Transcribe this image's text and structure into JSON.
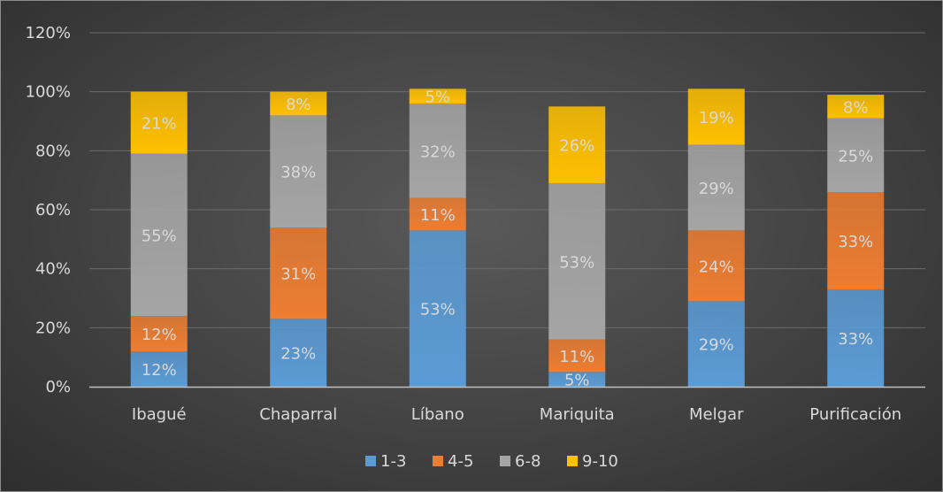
{
  "chart_data": {
    "type": "bar",
    "stacked": true,
    "categories": [
      "Ibagué",
      "Chaparral",
      "Líbano",
      "Mariquita",
      "Melgar",
      "Purificación"
    ],
    "series": [
      {
        "name": "1-3",
        "color": "#5b9bd5",
        "values": [
          12,
          23,
          53,
          5,
          29,
          33
        ]
      },
      {
        "name": "4-5",
        "color": "#ed7d31",
        "values": [
          12,
          31,
          11,
          11,
          24,
          33
        ]
      },
      {
        "name": "6-8",
        "color": "#a5a5a5",
        "values": [
          55,
          38,
          32,
          53,
          29,
          25
        ]
      },
      {
        "name": "9-10",
        "color": "#ffc000",
        "values": [
          21,
          8,
          5,
          26,
          19,
          8
        ]
      }
    ],
    "data_labels": [
      [
        "12%",
        "23%",
        "53%",
        "5%",
        "29%",
        "33%"
      ],
      [
        "12%",
        "31%",
        "11%",
        "11%",
        "24%",
        "33%"
      ],
      [
        "55%",
        "38%",
        "32%",
        "53%",
        "29%",
        "25%"
      ],
      [
        "21%",
        "8%",
        "5%",
        "26%",
        "19%",
        "8%"
      ]
    ],
    "y_ticks": [
      "0%",
      "20%",
      "40%",
      "60%",
      "80%",
      "100%",
      "120%"
    ],
    "ylim": [
      0,
      120
    ],
    "grid": true,
    "legend_position": "bottom",
    "title": "",
    "xlabel": "",
    "ylabel": ""
  }
}
